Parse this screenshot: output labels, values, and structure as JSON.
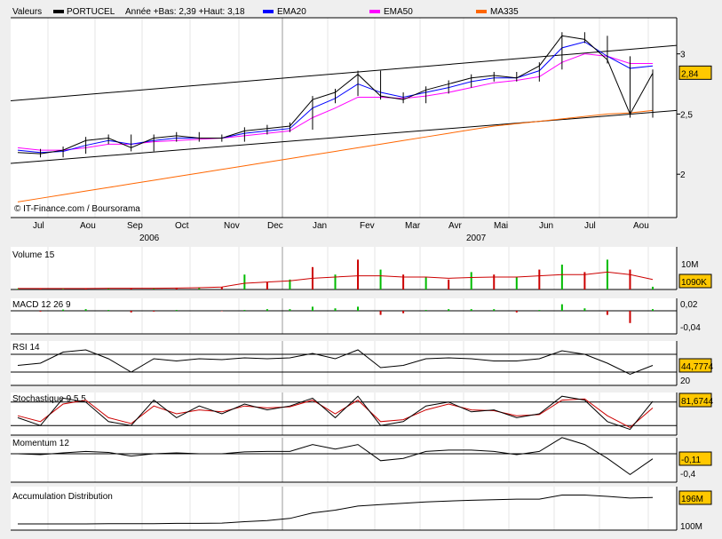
{
  "header": {
    "label": "Valeurs",
    "symbol": "PORTUCEL",
    "range": "Année +Bas: 2,39 +Haut: 3,18"
  },
  "legend": [
    {
      "name": "EMA20",
      "color": "#0000ff"
    },
    {
      "name": "EMA50",
      "color": "#ff00ff"
    },
    {
      "name": "MA335",
      "color": "#ff6600"
    }
  ],
  "credit": "© IT-Finance.com / Boursorama",
  "chart_data": {
    "type": "line",
    "x_labels": [
      "Jul",
      "Aou",
      "Sep",
      "Oct",
      "Nov",
      "Dec",
      "Jan",
      "Fev",
      "Mar",
      "Avr",
      "Mai",
      "Jun",
      "Jul",
      "Aou"
    ],
    "years": [
      "2006",
      "2007"
    ],
    "dates": [
      "2006-07-01",
      "2006-07-15",
      "2006-08-01",
      "2006-08-15",
      "2006-09-01",
      "2006-09-15",
      "2006-10-01",
      "2006-10-15",
      "2006-11-01",
      "2006-11-15",
      "2006-12-01",
      "2006-12-15",
      "2007-01-01",
      "2007-01-15",
      "2007-02-01",
      "2007-02-15",
      "2007-03-01",
      "2007-03-15",
      "2007-04-01",
      "2007-04-15",
      "2007-05-01",
      "2007-05-15",
      "2007-06-01",
      "2007-06-15",
      "2007-07-01",
      "2007-07-15",
      "2007-08-01",
      "2007-08-07",
      "2007-08-15"
    ],
    "price": {
      "name": "PORTUCEL",
      "ylim": [
        1.64,
        3.3
      ],
      "ticks": [
        {
          "v": 3,
          "label": "3"
        },
        {
          "v": 2.5,
          "label": "2,5"
        },
        {
          "v": 2,
          "label": "2"
        }
      ],
      "last": "2,84",
      "close": [
        2.18,
        2.17,
        2.2,
        2.28,
        2.3,
        2.22,
        2.3,
        2.32,
        2.3,
        2.3,
        2.36,
        2.38,
        2.4,
        2.62,
        2.68,
        2.83,
        2.65,
        2.62,
        2.7,
        2.75,
        2.8,
        2.82,
        2.8,
        2.9,
        3.15,
        3.12,
        2.95,
        2.5,
        2.84
      ],
      "ema20": [
        2.2,
        2.18,
        2.19,
        2.24,
        2.28,
        2.25,
        2.28,
        2.3,
        2.3,
        2.3,
        2.34,
        2.36,
        2.38,
        2.55,
        2.63,
        2.75,
        2.68,
        2.64,
        2.68,
        2.72,
        2.77,
        2.8,
        2.8,
        2.86,
        3.05,
        3.1,
        2.98,
        2.88,
        2.9
      ],
      "ema50": [
        2.22,
        2.2,
        2.2,
        2.22,
        2.25,
        2.25,
        2.27,
        2.28,
        2.29,
        2.3,
        2.32,
        2.34,
        2.36,
        2.47,
        2.55,
        2.64,
        2.64,
        2.63,
        2.65,
        2.68,
        2.72,
        2.76,
        2.78,
        2.81,
        2.93,
        3.0,
        2.98,
        2.92,
        2.92
      ],
      "ma335": [
        1.77,
        1.8,
        1.83,
        1.86,
        1.89,
        1.92,
        1.95,
        1.98,
        2.01,
        2.04,
        2.07,
        2.1,
        2.13,
        2.16,
        2.19,
        2.22,
        2.25,
        2.28,
        2.31,
        2.34,
        2.37,
        2.4,
        2.42,
        2.44,
        2.46,
        2.48,
        2.5,
        2.51,
        2.53
      ],
      "trendlines": [
        {
          "from": [
            2.61,
            "2006-07-01"
          ],
          "to": [
            3.07,
            "2007-08-20"
          ]
        },
        {
          "from": [
            2.09,
            "2006-07-01"
          ],
          "to": [
            2.53,
            "2007-08-20"
          ]
        }
      ]
    },
    "volume": {
      "title": "Volume 15",
      "tick": "10M",
      "last": "1090K",
      "unit": "M",
      "values": [
        0.3,
        0.4,
        0.3,
        0.4,
        0.5,
        0.5,
        0.4,
        0.6,
        0.8,
        1,
        6,
        3,
        4,
        9,
        6,
        12,
        8,
        6,
        5,
        4,
        7,
        6,
        5,
        8,
        10,
        7,
        12,
        8,
        1.1
      ],
      "ma": [
        0.4,
        0.4,
        0.4,
        0.4,
        0.5,
        0.5,
        0.5,
        0.6,
        0.7,
        1,
        2.5,
        3,
        3.5,
        4.5,
        5,
        5.5,
        5.5,
        5,
        5,
        4.5,
        4.8,
        5,
        5,
        5.5,
        6,
        6,
        7,
        6,
        4
      ]
    },
    "macd": {
      "title": "MACD 12 26 9",
      "ticks": [
        "0,02",
        "-0,04"
      ],
      "values": [
        0,
        -0.002,
        0.003,
        0.004,
        0.002,
        -0.004,
        -0.002,
        0.002,
        0,
        -0.001,
        0.002,
        0.004,
        0.004,
        0.01,
        0.006,
        0.01,
        -0.01,
        -0.006,
        0.002,
        0.004,
        0.004,
        0.004,
        -0.004,
        0.002,
        0.016,
        0.006,
        -0.01,
        -0.03,
        0.004
      ]
    },
    "rsi": {
      "title": "RSI 14",
      "tick": "20",
      "last": "44,7774",
      "values": [
        45,
        50,
        75,
        80,
        60,
        30,
        60,
        55,
        60,
        58,
        62,
        60,
        62,
        72,
        60,
        80,
        40,
        45,
        60,
        62,
        60,
        55,
        55,
        60,
        78,
        70,
        50,
        25,
        45
      ]
    },
    "stochastic": {
      "title": "Stochastique 9 5 5",
      "last": "81,6744",
      "k": [
        40,
        20,
        90,
        80,
        30,
        20,
        85,
        40,
        70,
        50,
        75,
        60,
        70,
        90,
        40,
        95,
        20,
        30,
        70,
        80,
        55,
        60,
        40,
        50,
        95,
        85,
        30,
        10,
        82
      ],
      "d": [
        45,
        30,
        75,
        85,
        40,
        25,
        70,
        50,
        60,
        55,
        70,
        65,
        68,
        85,
        50,
        85,
        30,
        35,
        60,
        75,
        60,
        58,
        45,
        48,
        85,
        88,
        45,
        15,
        65
      ]
    },
    "momentum": {
      "title": "Momentum 12",
      "ticks": [
        "-0,11",
        "-0,4"
      ],
      "values": [
        0,
        -0.02,
        0.02,
        0.05,
        0.03,
        -0.05,
        0,
        0.02,
        0,
        0,
        0.04,
        0.05,
        0.05,
        0.2,
        0.1,
        0.2,
        -0.15,
        -0.1,
        0.05,
        0.08,
        0.08,
        0.05,
        -0.02,
        0.05,
        0.35,
        0.2,
        -0.1,
        -0.45,
        -0.11
      ]
    },
    "accumulation": {
      "title": "Accumulation Distribution",
      "ticks": [
        "196M",
        "100M"
      ],
      "values": [
        100,
        100,
        100,
        100,
        101,
        101,
        101,
        102,
        102,
        103,
        108,
        112,
        120,
        140,
        150,
        165,
        170,
        175,
        180,
        183,
        186,
        188,
        190,
        190,
        205,
        205,
        200,
        194,
        196
      ]
    }
  }
}
